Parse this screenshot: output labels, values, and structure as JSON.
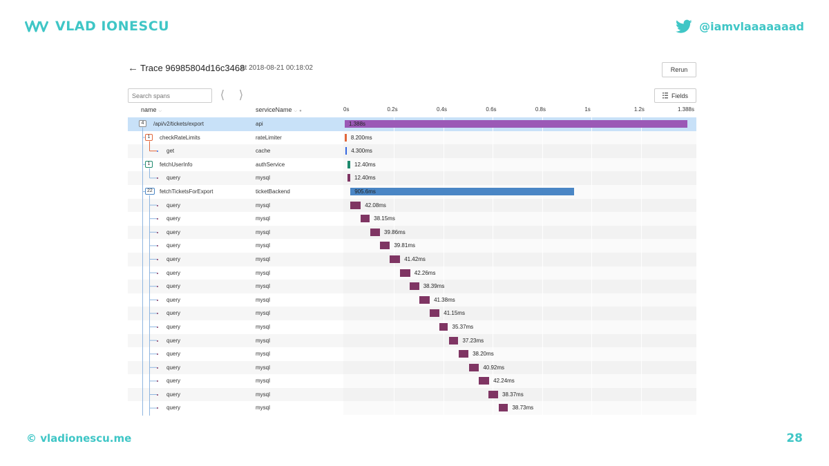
{
  "slide": {
    "brand_name": "VLAD IONESCU",
    "twitter_handle": "@iamvlaaaaaaad",
    "footer_site": "© vladionescu.me",
    "page_number": "28",
    "accent_color": "#3fc6c6"
  },
  "trace": {
    "back_icon": "arrow-left-icon",
    "title": "Trace 96985804d16c3468",
    "timestamp": "at 2018-08-21 00:18:02",
    "rerun_label": "Rerun",
    "search_placeholder": "Search spans",
    "fields_label": "Fields",
    "columns": {
      "name": "name",
      "service": "serviceName"
    },
    "time_ticks": [
      "0s",
      "0.2s",
      "0.4s",
      "0.6s",
      "0.8s",
      "1s",
      "1.2s",
      "1.388s"
    ],
    "total_duration_ms": 1388,
    "service_colors": {
      "api": "#9b59b6",
      "rateLimiter": "#e2663a",
      "cache": "#3366e0",
      "authService": "#1e8a6e",
      "mysql": "#7f3563",
      "ticketBackend": "#4a86c5"
    },
    "spans": [
      {
        "name": "/api/v2/tickets/export",
        "service": "api",
        "depth": 0,
        "child_count": "4",
        "start_ms": 0,
        "duration_ms": 1388,
        "label": "1.388s"
      },
      {
        "name": "checkRateLimits",
        "service": "rateLimiter",
        "depth": 1,
        "child_count": "1",
        "start_ms": 0,
        "duration_ms": 8.2,
        "label": "8.200ms"
      },
      {
        "name": "get",
        "service": "cache",
        "depth": 2,
        "child_count": "",
        "start_ms": 2,
        "duration_ms": 4.3,
        "label": "4.300ms"
      },
      {
        "name": "fetchUserInfo",
        "service": "authService",
        "depth": 1,
        "child_count": "1",
        "start_ms": 10,
        "duration_ms": 12.4,
        "label": "12.40ms"
      },
      {
        "name": "query",
        "service": "mysql",
        "depth": 2,
        "child_count": "",
        "start_ms": 10,
        "duration_ms": 12.4,
        "label": "12.40ms"
      },
      {
        "name": "fetchTicketsForExport",
        "service": "ticketBackend",
        "depth": 1,
        "child_count": "22",
        "start_ms": 23,
        "duration_ms": 905.6,
        "label": "905.6ms"
      },
      {
        "name": "query",
        "service": "mysql",
        "depth": 2,
        "child_count": "",
        "start_ms": 23,
        "duration_ms": 42.08,
        "label": "42.08ms"
      },
      {
        "name": "query",
        "service": "mysql",
        "depth": 2,
        "child_count": "",
        "start_ms": 63,
        "duration_ms": 38.15,
        "label": "38.15ms"
      },
      {
        "name": "query",
        "service": "mysql",
        "depth": 2,
        "child_count": "",
        "start_ms": 103,
        "duration_ms": 39.86,
        "label": "39.86ms"
      },
      {
        "name": "query",
        "service": "mysql",
        "depth": 2,
        "child_count": "",
        "start_ms": 143,
        "duration_ms": 39.81,
        "label": "39.81ms"
      },
      {
        "name": "query",
        "service": "mysql",
        "depth": 2,
        "child_count": "",
        "start_ms": 183,
        "duration_ms": 41.42,
        "label": "41.42ms"
      },
      {
        "name": "query",
        "service": "mysql",
        "depth": 2,
        "child_count": "",
        "start_ms": 223,
        "duration_ms": 42.26,
        "label": "42.26ms"
      },
      {
        "name": "query",
        "service": "mysql",
        "depth": 2,
        "child_count": "",
        "start_ms": 263,
        "duration_ms": 38.39,
        "label": "38.39ms"
      },
      {
        "name": "query",
        "service": "mysql",
        "depth": 2,
        "child_count": "",
        "start_ms": 303,
        "duration_ms": 41.38,
        "label": "41.38ms"
      },
      {
        "name": "query",
        "service": "mysql",
        "depth": 2,
        "child_count": "",
        "start_ms": 343,
        "duration_ms": 41.15,
        "label": "41.15ms"
      },
      {
        "name": "query",
        "service": "mysql",
        "depth": 2,
        "child_count": "",
        "start_ms": 383,
        "duration_ms": 35.37,
        "label": "35.37ms"
      },
      {
        "name": "query",
        "service": "mysql",
        "depth": 2,
        "child_count": "",
        "start_ms": 423,
        "duration_ms": 37.23,
        "label": "37.23ms"
      },
      {
        "name": "query",
        "service": "mysql",
        "depth": 2,
        "child_count": "",
        "start_ms": 463,
        "duration_ms": 38.2,
        "label": "38.20ms"
      },
      {
        "name": "query",
        "service": "mysql",
        "depth": 2,
        "child_count": "",
        "start_ms": 503,
        "duration_ms": 40.92,
        "label": "40.92ms"
      },
      {
        "name": "query",
        "service": "mysql",
        "depth": 2,
        "child_count": "",
        "start_ms": 543,
        "duration_ms": 42.24,
        "label": "42.24ms"
      },
      {
        "name": "query",
        "service": "mysql",
        "depth": 2,
        "child_count": "",
        "start_ms": 583,
        "duration_ms": 38.37,
        "label": "38.37ms"
      },
      {
        "name": "query",
        "service": "mysql",
        "depth": 2,
        "child_count": "",
        "start_ms": 623,
        "duration_ms": 38.73,
        "label": "38.73ms"
      }
    ]
  }
}
